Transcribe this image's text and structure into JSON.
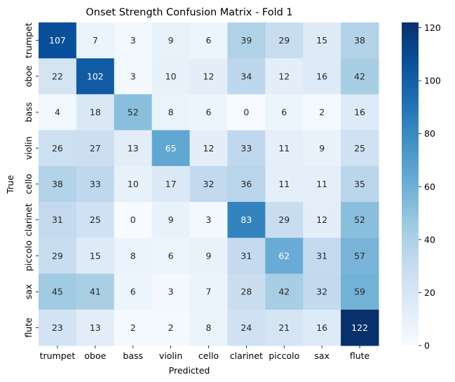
{
  "chart_data": {
    "type": "heatmap",
    "title": "Onset Strength Confusion Matrix - Fold 1",
    "xlabel": "Predicted",
    "ylabel": "True",
    "x_categories": [
      "trumpet",
      "oboe",
      "bass",
      "violin",
      "cello",
      "clarinet",
      "piccolo",
      "sax",
      "flute"
    ],
    "y_categories": [
      "trumpet",
      "oboe",
      "bass",
      "violin",
      "cello",
      "clarinet",
      "piccolo",
      "sax",
      "flute"
    ],
    "values": [
      [
        107,
        7,
        3,
        9,
        6,
        39,
        29,
        15,
        38
      ],
      [
        22,
        102,
        3,
        10,
        12,
        34,
        12,
        16,
        42
      ],
      [
        4,
        18,
        52,
        8,
        6,
        0,
        6,
        2,
        16
      ],
      [
        26,
        27,
        13,
        65,
        12,
        33,
        11,
        9,
        25
      ],
      [
        38,
        33,
        10,
        17,
        32,
        36,
        11,
        11,
        35
      ],
      [
        31,
        25,
        0,
        9,
        3,
        83,
        29,
        12,
        52
      ],
      [
        29,
        15,
        8,
        6,
        9,
        31,
        62,
        31,
        57
      ],
      [
        45,
        41,
        6,
        3,
        7,
        28,
        42,
        32,
        59
      ],
      [
        23,
        13,
        2,
        2,
        8,
        24,
        21,
        16,
        122
      ]
    ],
    "colorbar": {
      "min": 0,
      "max": 122,
      "ticks": [
        0,
        20,
        40,
        60,
        80,
        100,
        120
      ],
      "colormap": "Blues"
    },
    "annotation_threshold": 61
  }
}
